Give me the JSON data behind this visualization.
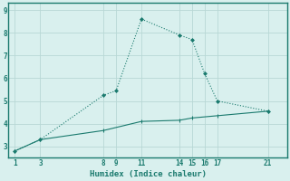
{
  "line1_x": [
    1,
    3,
    8,
    9,
    11,
    14,
    15,
    16,
    17,
    21
  ],
  "line1_y": [
    2.8,
    3.3,
    5.25,
    5.45,
    8.6,
    7.9,
    7.7,
    6.2,
    5.0,
    4.55
  ],
  "line2_x": [
    1,
    3,
    8,
    11,
    14,
    15,
    17,
    21
  ],
  "line2_y": [
    2.8,
    3.3,
    3.7,
    4.1,
    4.15,
    4.25,
    4.35,
    4.55
  ],
  "line_color": "#1a7a6e",
  "bg_color": "#d9f0ee",
  "grid_color": "#b8d8d5",
  "xlabel": "Humidex (Indice chaleur)",
  "xticks": [
    1,
    3,
    8,
    9,
    11,
    14,
    15,
    16,
    17,
    21
  ],
  "yticks": [
    3,
    4,
    5,
    6,
    7,
    8,
    9
  ],
  "ylim": [
    2.5,
    9.3
  ],
  "xlim": [
    0.5,
    22.5
  ]
}
